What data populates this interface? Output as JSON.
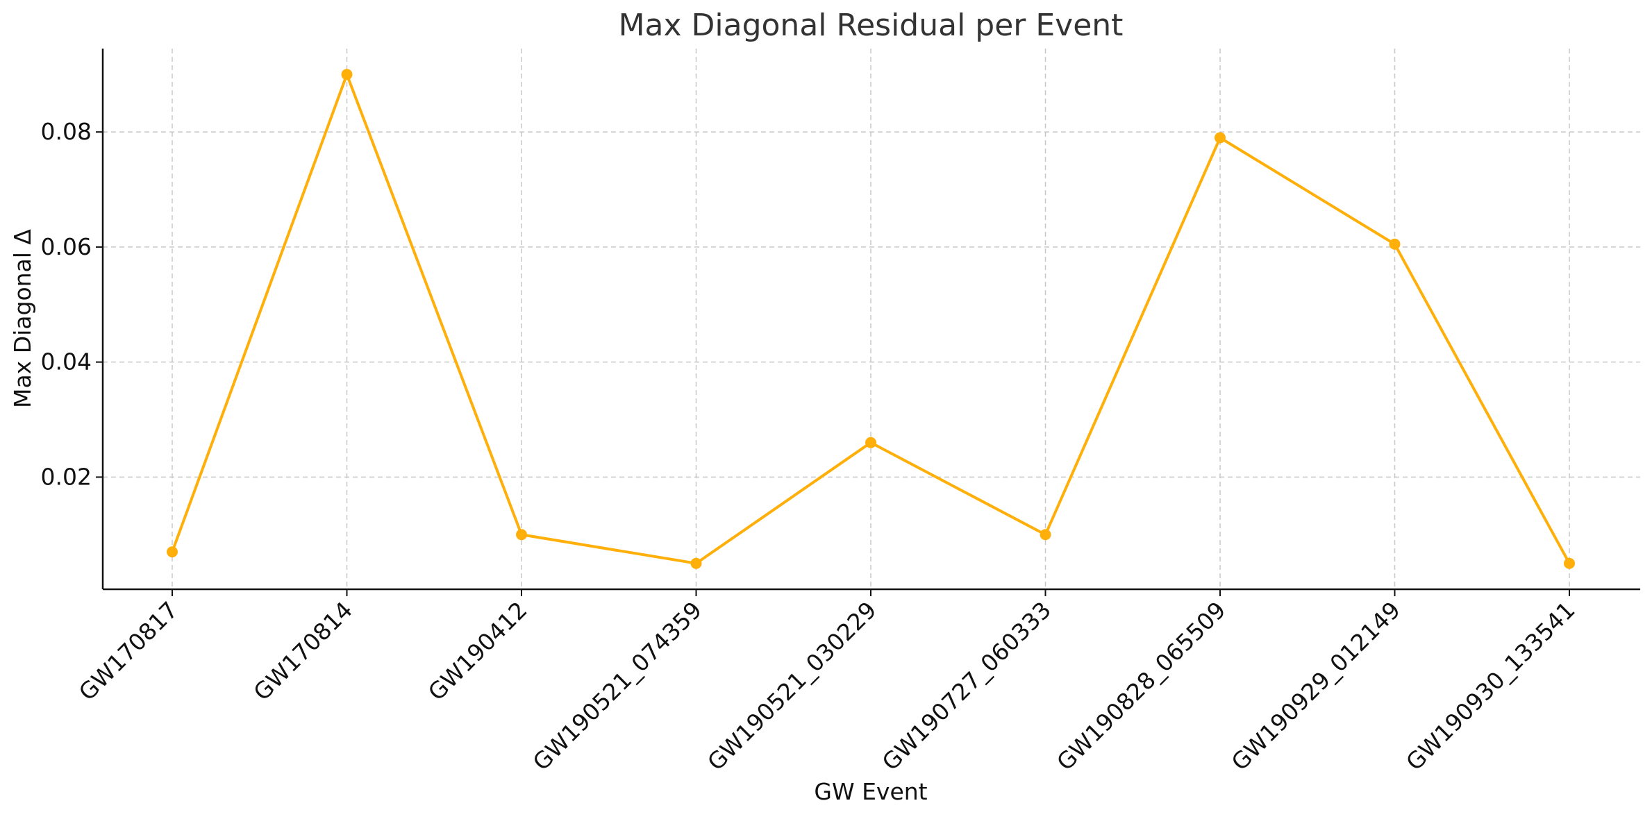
{
  "chart_data": {
    "type": "line",
    "title": "Max Diagonal Residual per Event",
    "xlabel": "GW Event",
    "ylabel": "Max Diagonal Δ",
    "categories": [
      "GW170817",
      "GW170814",
      "GW190412",
      "GW190521_074359",
      "GW190521_030229",
      "GW190727_060333",
      "GW190828_065509",
      "GW190929_012149",
      "GW190930_133541"
    ],
    "series": [
      {
        "values": [
          0.007,
          0.09,
          0.01,
          0.005,
          0.026,
          0.01,
          0.079,
          0.0605,
          0.005
        ],
        "color": "#FFAF0A"
      }
    ],
    "yticks": [
      0.02,
      0.04,
      0.06,
      0.08
    ],
    "ytick_labels": [
      "0.02",
      "0.04",
      "0.06",
      "0.08"
    ],
    "ylim": [
      0.0005,
      0.0945
    ],
    "grid": true,
    "marker": "circle"
  }
}
